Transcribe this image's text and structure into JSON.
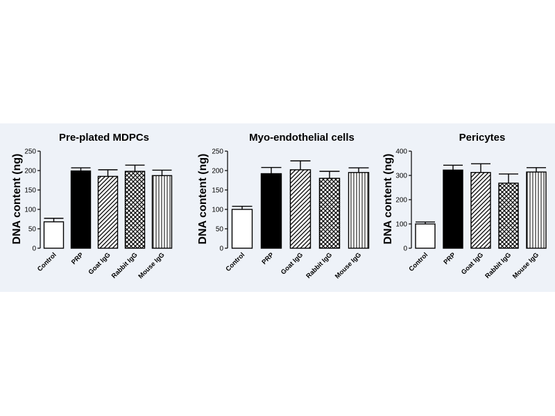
{
  "chart_data": [
    {
      "type": "bar",
      "title": "Pre-plated MDPCs",
      "ylabel": "DNA content (ng)",
      "xlabel": "",
      "ylim": [
        0,
        250
      ],
      "yticks": [
        0,
        50,
        100,
        150,
        200,
        250
      ],
      "categories": [
        "Control",
        "PRP",
        "Goat IgG",
        "Rabbit IgG",
        "Mouse IgG"
      ],
      "values": [
        68,
        199,
        185,
        198,
        187
      ],
      "errors": [
        9,
        8,
        17,
        16,
        14
      ],
      "fills": [
        "white",
        "solid-black",
        "diagonal-hatch",
        "crosshatch",
        "vertical-lines"
      ]
    },
    {
      "type": "bar",
      "title": "Myo-endothelial cells",
      "ylabel": "DNA content (ng)",
      "xlabel": "",
      "ylim": [
        0,
        250
      ],
      "yticks": [
        0,
        50,
        100,
        150,
        200,
        250
      ],
      "categories": [
        "Control",
        "PRP",
        "Goat IgG",
        "Rabbit IgG",
        "Mouse IgG"
      ],
      "values": [
        100,
        192,
        202,
        180,
        195
      ],
      "errors": [
        8,
        16,
        23,
        18,
        12
      ],
      "fills": [
        "white",
        "solid-black",
        "diagonal-hatch",
        "crosshatch",
        "vertical-lines"
      ]
    },
    {
      "type": "bar",
      "title": "Pericytes",
      "ylabel": "DNA content (ng)",
      "xlabel": "",
      "ylim": [
        0,
        400
      ],
      "yticks": [
        0,
        100,
        200,
        300,
        400
      ],
      "categories": [
        "Control",
        "PRP",
        "Goat IgG",
        "Rabbit IgG",
        "Mouse IgG"
      ],
      "values": [
        100,
        322,
        312,
        268,
        314
      ],
      "errors": [
        8,
        20,
        36,
        38,
        18
      ],
      "fills": [
        "white",
        "solid-black",
        "diagonal-hatch",
        "crosshatch",
        "vertical-lines"
      ]
    }
  ]
}
